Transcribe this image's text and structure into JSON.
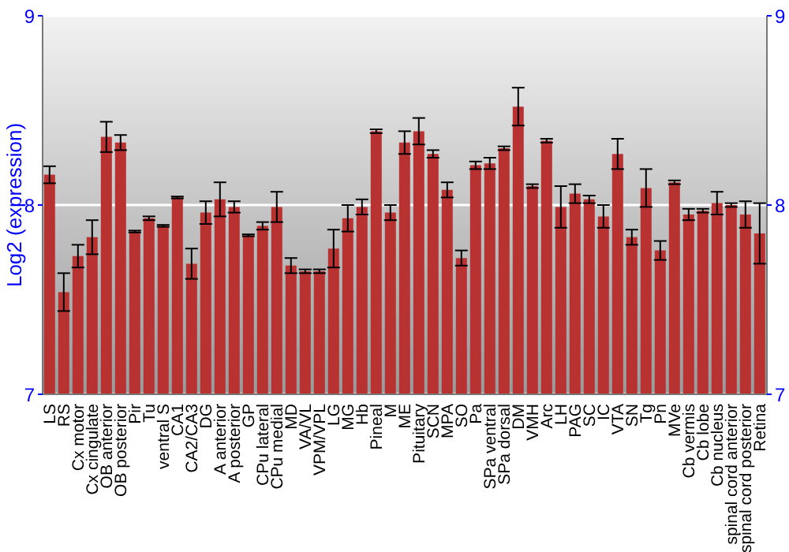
{
  "chart_data": {
    "type": "bar",
    "ylabel": "Log2 (expression)",
    "categories": [
      "LS",
      "RS",
      "Cx motor",
      "Cx cingulate",
      "OB anterior",
      "OB posterior",
      "Pir",
      "Tu",
      "ventral S",
      "CA1",
      "CA2/CA3",
      "DG",
      "A anterior",
      "A posterior",
      "GP",
      "CPu lateral",
      "CPu medial",
      "MD",
      "VA/VL",
      "VPM/VPL",
      "LG",
      "MG",
      "Hb",
      "Pineal",
      "M",
      "ME",
      "Pituitary",
      "SCN",
      "MPA",
      "SO",
      "Pa",
      "SPa ventral",
      "SPa dorsal",
      "DM",
      "VMH",
      "Arc",
      "LH",
      "PAG",
      "SC",
      "IC",
      "VTA",
      "SN",
      "Tg",
      "Pn",
      "MVe",
      "Cb vermis",
      "Cb lobe",
      "Cb nucleus",
      "spinal cord anterior",
      "spinal cord posterior",
      "Retina"
    ],
    "values": [
      8.16,
      7.54,
      7.73,
      7.83,
      8.36,
      8.33,
      7.86,
      7.93,
      7.89,
      8.04,
      7.69,
      7.96,
      8.03,
      7.99,
      7.84,
      7.89,
      7.99,
      7.68,
      7.65,
      7.65,
      7.77,
      7.93,
      7.99,
      8.39,
      7.96,
      8.33,
      8.39,
      8.27,
      8.08,
      7.72,
      8.21,
      8.22,
      8.3,
      8.52,
      8.1,
      8.34,
      7.99,
      8.06,
      8.03,
      7.94,
      8.27,
      7.83,
      8.09,
      7.76,
      8.12,
      7.95,
      7.97,
      8.01,
      8.0,
      7.95,
      7.85
    ],
    "errors": [
      0.045,
      0.1,
      0.06,
      0.09,
      0.08,
      0.04,
      0.005,
      0.01,
      0.005,
      0.005,
      0.08,
      0.06,
      0.09,
      0.03,
      0.005,
      0.02,
      0.08,
      0.04,
      0.01,
      0.01,
      0.1,
      0.07,
      0.04,
      0.01,
      0.04,
      0.06,
      0.07,
      0.02,
      0.04,
      0.04,
      0.02,
      0.03,
      0.01,
      0.1,
      0.01,
      0.01,
      0.11,
      0.05,
      0.02,
      0.06,
      0.08,
      0.04,
      0.1,
      0.05,
      0.01,
      0.03,
      0.01,
      0.06,
      0.01,
      0.07,
      0.16
    ],
    "color": "#b83232",
    "ylim": [
      7,
      9
    ],
    "yticks": [
      7,
      8,
      9
    ],
    "y2lim": [
      7,
      9
    ],
    "y2ticks": [
      7,
      8,
      9
    ],
    "grid": "y"
  }
}
